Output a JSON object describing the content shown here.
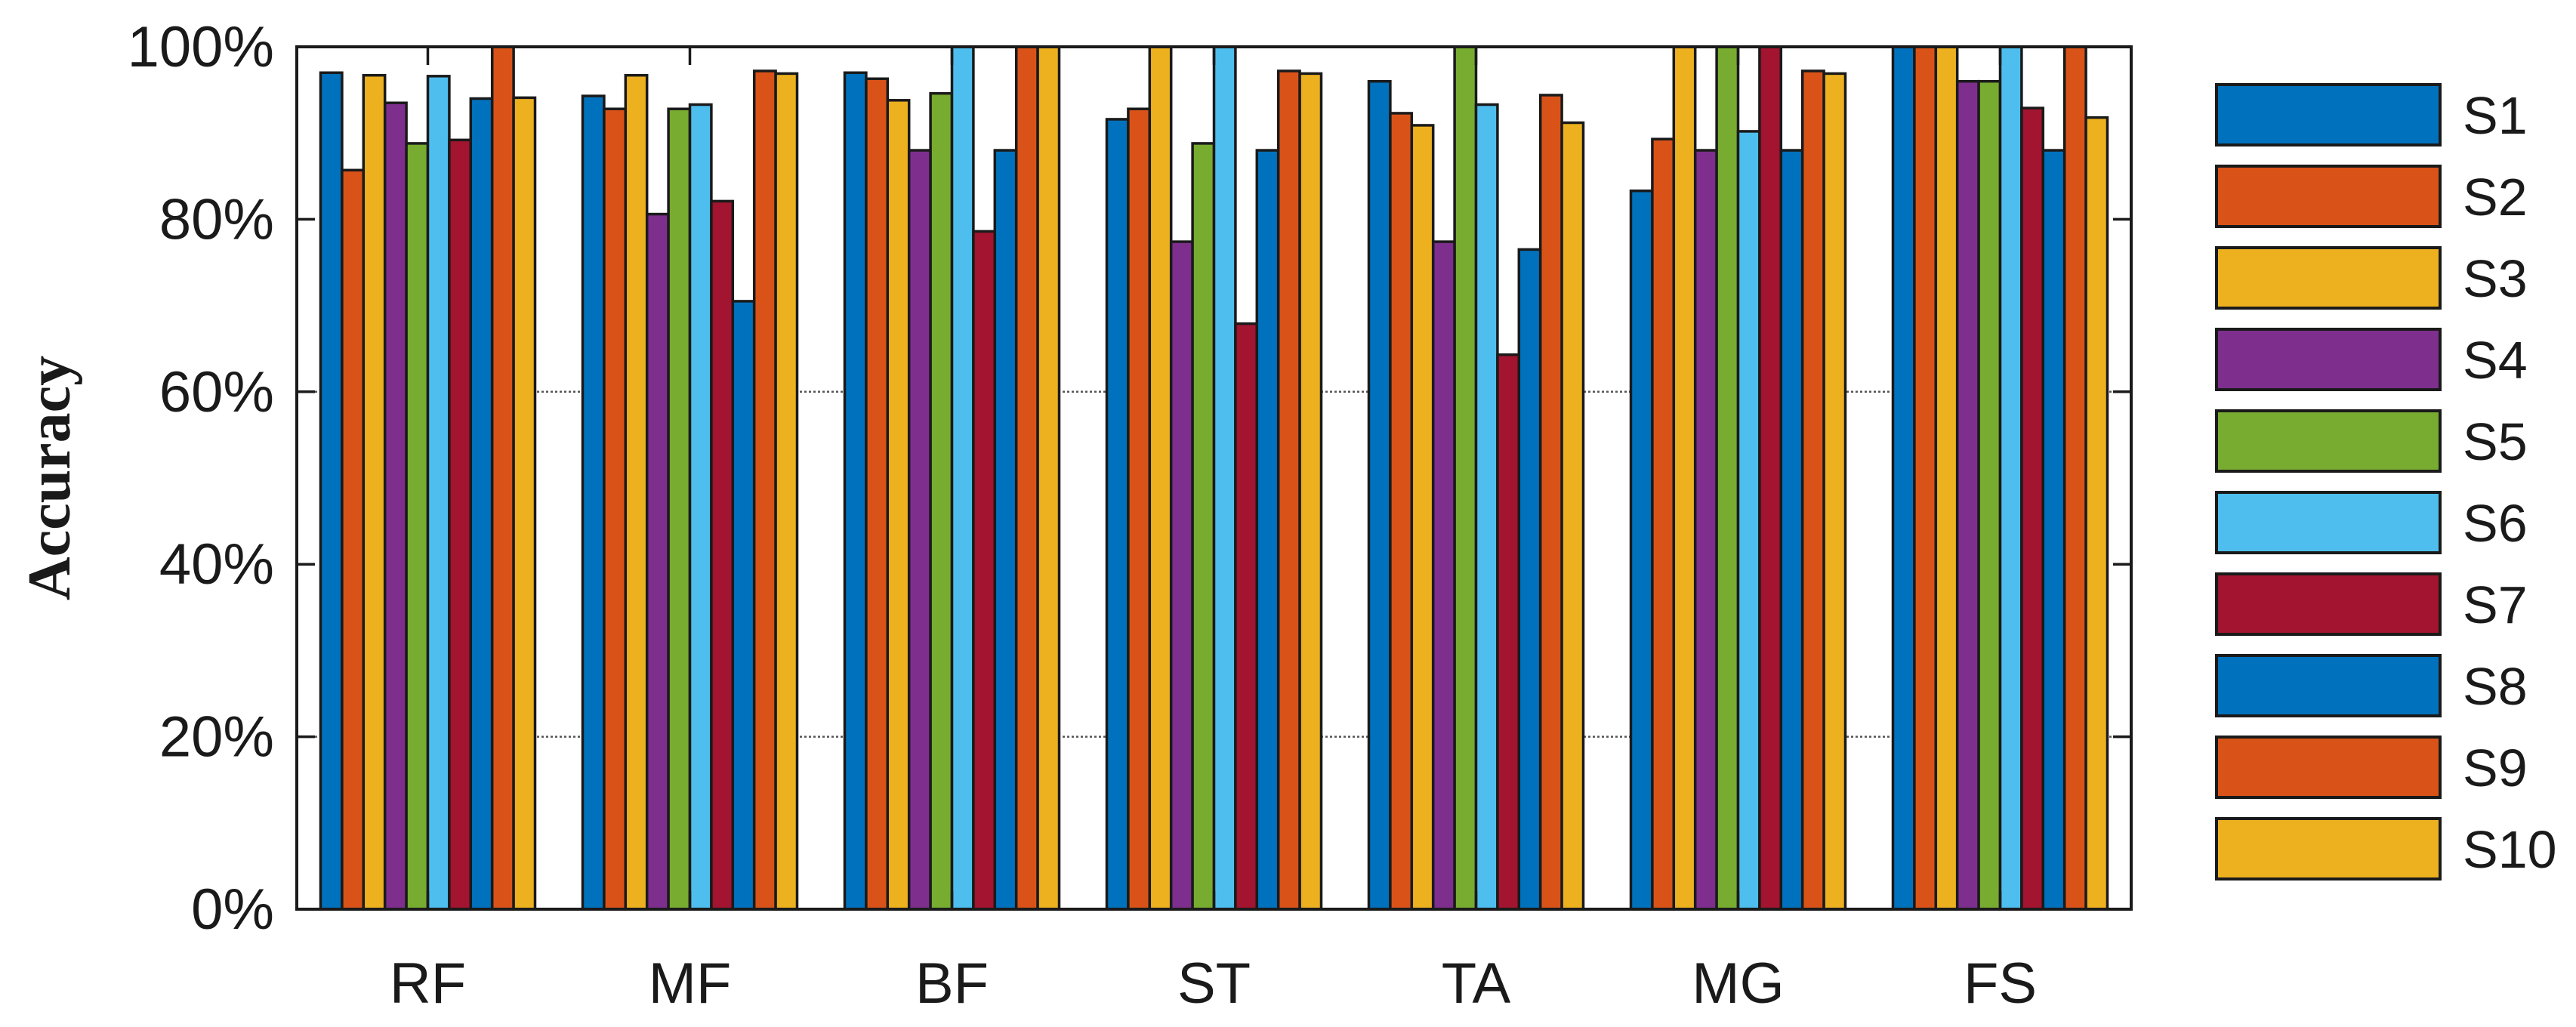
{
  "chart_data": {
    "type": "bar",
    "title": "",
    "xlabel": "",
    "ylabel": "Accuracy",
    "ylim": [
      0,
      100
    ],
    "y_ticks": [
      0,
      20,
      40,
      60,
      80,
      100
    ],
    "y_tick_labels": [
      "0%",
      "20%",
      "40%",
      "60%",
      "80%",
      "100%"
    ],
    "grid": "dotted horizontal at 20% and 60%",
    "legend_position": "right",
    "categories": [
      "RF",
      "MF",
      "BF",
      "ST",
      "TA",
      "MG",
      "FS"
    ],
    "series": [
      {
        "name": "S1",
        "color": "#0072BD",
        "values": [
          97,
          94.3,
          97,
          91.6,
          96,
          83.3,
          100
        ]
      },
      {
        "name": "S2",
        "color": "#D95319",
        "values": [
          85.7,
          92.8,
          96.3,
          92.8,
          92.3,
          89.3,
          100
        ]
      },
      {
        "name": "S3",
        "color": "#EDB120",
        "values": [
          96.7,
          96.7,
          93.8,
          100,
          90.9,
          100,
          100
        ]
      },
      {
        "name": "S4",
        "color": "#7E2F8E",
        "values": [
          93.5,
          80.6,
          88,
          77.4,
          77.4,
          88,
          96
        ]
      },
      {
        "name": "S5",
        "color": "#77AC30",
        "values": [
          88.8,
          92.8,
          94.6,
          88.8,
          100,
          100,
          96
        ]
      },
      {
        "name": "S6",
        "color": "#4DBEEE",
        "values": [
          96.6,
          93.3,
          100,
          100,
          93.3,
          90.2,
          100
        ]
      },
      {
        "name": "S7",
        "color": "#A2142F",
        "values": [
          89.2,
          82.1,
          78.6,
          67.9,
          64.3,
          100,
          92.9
        ]
      },
      {
        "name": "S8",
        "color": "#0072BD",
        "values": [
          94,
          70.5,
          88,
          88,
          76.5,
          88,
          88
        ]
      },
      {
        "name": "S9",
        "color": "#D95319",
        "values": [
          100,
          97.2,
          100,
          97.2,
          94.4,
          97.2,
          100
        ]
      },
      {
        "name": "S10",
        "color": "#EDB120",
        "values": [
          94.1,
          96.9,
          100,
          96.9,
          91.2,
          96.9,
          91.8
        ]
      }
    ]
  }
}
